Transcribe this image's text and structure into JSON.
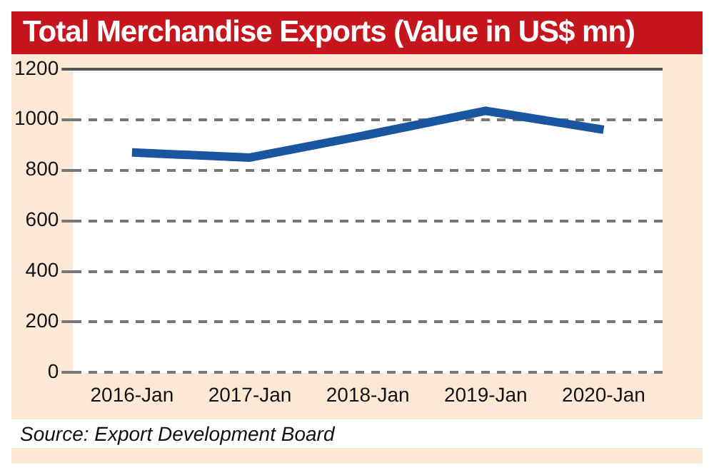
{
  "chart_data": {
    "type": "line",
    "title": "Total Merchandise Exports (Value in US$ mn)",
    "categories": [
      "2016-Jan",
      "2017-Jan",
      "2018-Jan",
      "2019-Jan",
      "2020-Jan"
    ],
    "series": [
      {
        "color": "#1a56a0",
        "values": [
          870,
          850,
          940,
          1035,
          960
        ]
      }
    ],
    "ylim": [
      0,
      1200
    ],
    "yticks": [
      0,
      200,
      400,
      600,
      800,
      1000,
      1200
    ],
    "grid": "y",
    "legend": false,
    "marker": "none",
    "line_style": "solid",
    "annotations": [
      "Source: Export Development Board"
    ]
  }
}
